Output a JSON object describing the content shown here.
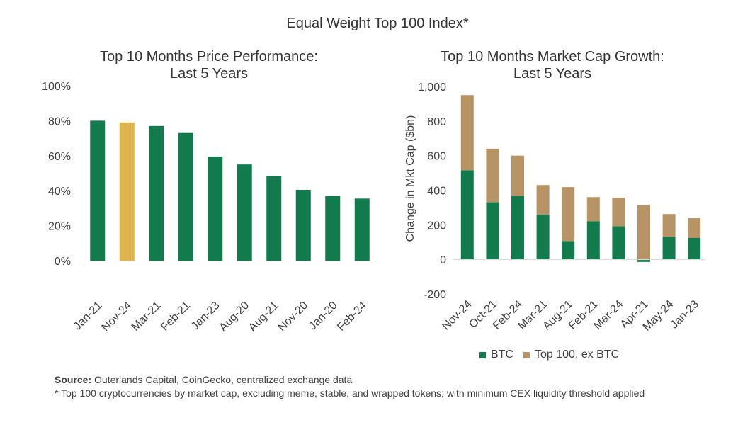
{
  "header": {
    "title": "Equal Weight Top 100 Index*"
  },
  "chart_data": [
    {
      "type": "bar",
      "title_line1": "Top 10 Months Price Performance:",
      "title_line2": "Last 5 Years",
      "categories": [
        "Jan-21",
        "Nov-24",
        "Mar-21",
        "Feb-21",
        "Jan-23",
        "Aug-20",
        "Aug-21",
        "Nov-20",
        "Jan-20",
        "Feb-24"
      ],
      "values": [
        80,
        79,
        77,
        73,
        59.5,
        55,
        48.5,
        40.5,
        37,
        35.5
      ],
      "highlight_index": 1,
      "colors": {
        "default": "#127a4c",
        "highlight": "#deb44f"
      },
      "ylim": [
        0,
        100
      ],
      "yticks": [
        0,
        20,
        40,
        60,
        80,
        100
      ],
      "ytick_labels": [
        "0%",
        "20%",
        "40%",
        "60%",
        "80%",
        "100%"
      ],
      "xlabel": "",
      "ylabel": ""
    },
    {
      "type": "bar",
      "stacked": true,
      "title_line1": "Top 10 Months Market Cap Growth:",
      "title_line2": "Last 5 Years",
      "categories": [
        "Nov-24",
        "Oct-21",
        "Feb-24",
        "Mar-21",
        "Aug-21",
        "Feb-21",
        "Mar-24",
        "Apr-21",
        "May-24",
        "Jan-23"
      ],
      "series": [
        {
          "name": "BTC",
          "color": "#127a4c",
          "values": [
            515,
            330,
            368,
            258,
            105,
            220,
            192,
            -15,
            130,
            125
          ]
        },
        {
          "name": "Top 100, ex BTC",
          "color": "#b79465",
          "values": [
            435,
            310,
            232,
            172,
            313,
            140,
            165,
            315,
            132,
            113
          ]
        }
      ],
      "ylim": [
        -200,
        1000
      ],
      "yticks": [
        -200,
        0,
        200,
        400,
        600,
        800,
        1000
      ],
      "ytick_labels": [
        "-200",
        "0",
        "200",
        "400",
        "600",
        "800",
        "1,000"
      ],
      "xlabel": "",
      "ylabel": "Change in Mkt Cap ($bn)"
    }
  ],
  "footer": {
    "source_label": "Source:",
    "source_text": " Outerlands Capital, CoinGecko, centralized exchange data",
    "note": "* Top 100 cryptocurrencies  by market cap, excluding meme, stable, and wrapped tokens; with minimum CEX liquidity threshold applied"
  }
}
